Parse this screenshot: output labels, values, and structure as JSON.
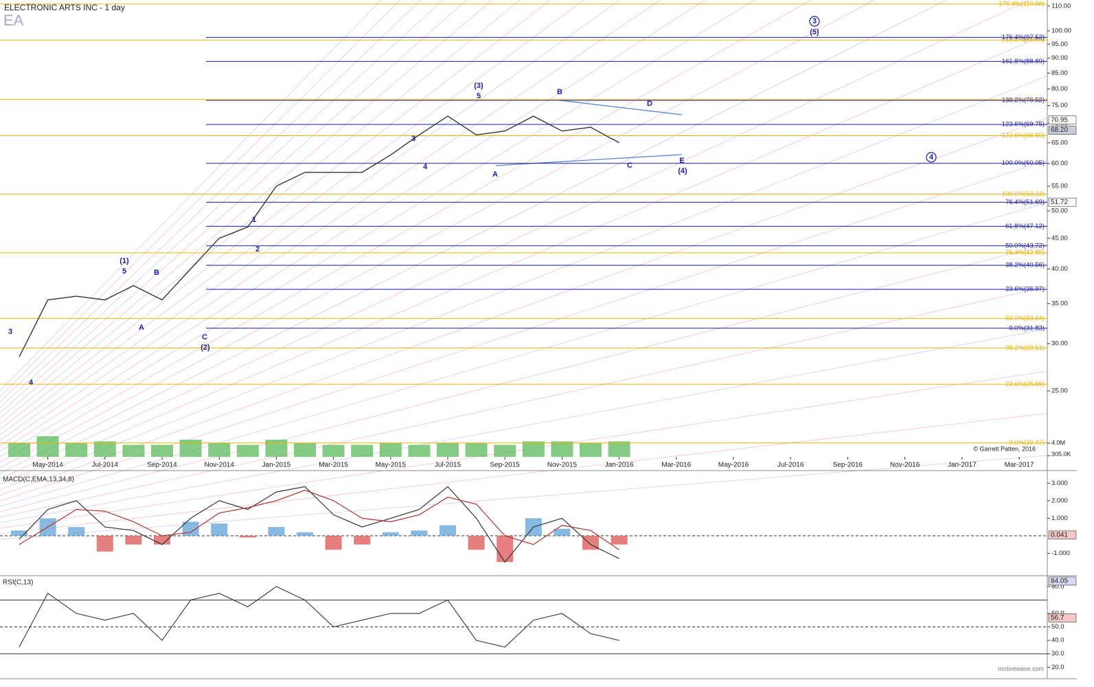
{
  "chart_data": [
    {
      "type": "line",
      "title": "ELECTRONIC ARTS INC - 1 day",
      "subtitle": "EA",
      "categories": [
        null,
        "May-2014",
        null,
        "Jul-2014",
        null,
        "Sep-2014",
        null,
        "Nov-2014",
        null,
        "Jan-2015",
        null,
        "Mar-2015",
        null,
        "May-2015",
        null,
        "Jul-2015",
        null,
        "Sep-2015",
        null,
        "Nov-2015",
        null,
        "Jan-2016",
        null,
        "Mar-2016",
        null,
        "May-2016",
        null,
        "Jul-2016",
        null,
        "Sep-2016",
        null,
        "Nov-2016",
        null,
        "Jan-2017",
        null,
        "Mar-2017"
      ],
      "series": [
        {
          "color": "#333333",
          "values": [
            28.5,
            35.5,
            36,
            35.5,
            37.5,
            35.5,
            40,
            45,
            47,
            55,
            58,
            58,
            58,
            62,
            67,
            72,
            67,
            68,
            72,
            68,
            69,
            65,
            null,
            null,
            null,
            null,
            null,
            null,
            null,
            null,
            null,
            null,
            null,
            null,
            null,
            null
          ]
        }
      ],
      "ylim": [
        19.4,
        112.6
      ],
      "log_scale": true,
      "yticks": [
        {
          "value": 110,
          "label": "110.00"
        },
        {
          "value": 100,
          "label": "100.00"
        },
        {
          "value": 95,
          "label": "95.00"
        },
        {
          "value": 90,
          "label": "90.00"
        },
        {
          "value": 85,
          "label": "85.00"
        },
        {
          "value": 80,
          "label": "80.00"
        },
        {
          "value": 75,
          "label": "75.00"
        },
        {
          "value": 70,
          "label": "70.00"
        },
        {
          "value": 65,
          "label": "65.00"
        },
        {
          "value": 60,
          "label": "60.00"
        },
        {
          "value": 55,
          "label": "55.00"
        },
        {
          "value": 50,
          "label": "50.00"
        },
        {
          "value": 45,
          "label": "45.00"
        },
        {
          "value": 40,
          "label": "40.00"
        },
        {
          "value": 35,
          "label": "35.00"
        },
        {
          "value": 30,
          "label": "30.00"
        },
        {
          "value": 25,
          "label": "25.00"
        }
      ],
      "levels": [
        {
          "value": 110.88,
          "label": "176.4%(110.88)",
          "color": "#e8b400",
          "full": true
        },
        {
          "value": 96.53,
          "label": "161.8%(96.53)",
          "color": "#e8b400",
          "full": true
        },
        {
          "value": 97.52,
          "label": "176.4%(97.52)",
          "color": "#1a1aa8",
          "full": false
        },
        {
          "value": 88.89,
          "label": "161.8%(88.89)",
          "color": "#1a1aa8",
          "full": false
        },
        {
          "value": 76.52,
          "label": "138.2%(76.52)",
          "color": "#1a1aa8",
          "full": false
        },
        {
          "value": 76.81,
          "label": null,
          "color": "#e8b400",
          "full": true
        },
        {
          "value": 69.75,
          "label": "123.6%(69.75)",
          "color": "#1a1aa8",
          "full": false
        },
        {
          "value": 66.8,
          "label": "123.6%(66.80)",
          "color": "#e8b400",
          "full": true
        },
        {
          "value": 60.05,
          "label": "100.0%(60.05)",
          "color": "#1a1aa8",
          "full": false
        },
        {
          "value": 53.34,
          "label": "100.0%(53.34)",
          "color": "#e8b400",
          "full": true
        },
        {
          "value": 51.69,
          "label": "76.4%(51.69)",
          "color": "#1a1aa8",
          "full": false
        },
        {
          "value": 47.12,
          "label": "61.8%(47.12)",
          "color": "#1a1aa8",
          "full": false
        },
        {
          "value": 43.72,
          "label": "50.0%(43.72)",
          "color": "#1a1aa8",
          "full": false
        },
        {
          "value": 42.55,
          "label": "76.4%(42.55)",
          "color": "#e8b400",
          "full": true
        },
        {
          "value": 40.56,
          "label": "38.2%(40.56)",
          "color": "#1a1aa8",
          "full": false
        },
        {
          "value": 36.97,
          "label": "23.6%(36.97)",
          "color": "#1a1aa8",
          "full": false
        },
        {
          "value": 33.04,
          "label": "50.0%(33.04)",
          "color": "#e8b400",
          "full": true
        },
        {
          "value": 31.83,
          "label": "0.0%(31.83)",
          "color": "#1a1aa8",
          "full": false
        },
        {
          "value": 29.51,
          "label": "38.2%(29.51)",
          "color": "#e8b400",
          "full": true
        },
        {
          "value": 25.66,
          "label": "23.6%(25.66)",
          "color": "#e8b400",
          "full": true
        },
        {
          "value": 20.47,
          "label": "0.0%(20.47)",
          "color": "#e8b400",
          "full": true
        }
      ],
      "price_labels": [
        {
          "value": 70.95,
          "label": "70.95"
        },
        {
          "value": 68.2,
          "label": "68.20"
        },
        {
          "value": 51.72,
          "label": "51.72"
        }
      ],
      "annotations": [
        "3",
        "4",
        "(1)",
        "5",
        "A",
        "B",
        "C",
        "(2)",
        "1",
        "2",
        "3",
        "4",
        "(3)",
        "5",
        "A",
        "B",
        "D",
        "C",
        "E",
        "(4)",
        "3",
        "(5)",
        "4"
      ],
      "volume": {
        "color": "#5cb85c",
        "values": [
          4000000,
          6000000,
          4000000,
          4500000,
          3500000,
          3500000,
          5000000,
          4000000,
          3500000,
          5000000,
          4000000,
          3500000,
          3500000,
          4000000,
          3500000,
          4000000,
          4000000,
          3500000,
          4500000,
          4500000,
          4000000,
          4500000,
          null,
          null,
          null,
          null,
          null,
          null,
          null,
          null,
          null,
          null,
          null,
          null,
          null,
          null
        ],
        "ylim": [
          0,
          24000000
        ],
        "yticks": [
          {
            "value": 305000,
            "label": "305.0K"
          },
          {
            "value": 4000000,
            "label": "4.0M"
          }
        ]
      },
      "credit": "© Garrett Patten, 2016"
    },
    {
      "type": "macd",
      "title": "MACD(C,EMA,13,34,8)",
      "series": [
        {
          "color": "#333333",
          "values": [
            -0.2,
            1.5,
            2.0,
            0.5,
            0.3,
            -0.5,
            1.0,
            2.0,
            1.5,
            2.5,
            2.8,
            1.2,
            0.5,
            1.0,
            1.5,
            2.8,
            1.0,
            -1.5,
            0.5,
            1.0,
            -0.5,
            -1.3,
            null,
            null,
            null,
            null,
            null,
            null,
            null,
            null,
            null,
            null,
            null,
            null,
            null,
            null
          ]
        },
        {
          "color": "#b03030",
          "values": [
            -0.5,
            0.5,
            1.5,
            1.4,
            0.8,
            0.0,
            0.2,
            1.3,
            1.6,
            2.0,
            2.6,
            2.0,
            1.0,
            0.8,
            1.2,
            2.2,
            1.8,
            0.0,
            -0.5,
            0.6,
            0.3,
            -0.8,
            null,
            null,
            null,
            null,
            null,
            null,
            null,
            null,
            null,
            null,
            null,
            null,
            null,
            null
          ]
        }
      ],
      "histogram": {
        "pos_color": "#6aa8d8",
        "neg_color": "#e06060",
        "values": [
          0.3,
          1.0,
          0.5,
          -0.9,
          -0.5,
          -0.5,
          0.8,
          0.7,
          -0.1,
          0.5,
          0.2,
          -0.8,
          -0.5,
          0.2,
          0.3,
          0.6,
          -0.8,
          -1.5,
          1.0,
          0.4,
          -0.8,
          -0.5,
          null,
          null,
          null,
          null,
          null,
          null,
          null,
          null,
          null,
          null,
          null,
          null,
          null,
          null
        ]
      },
      "ylim": [
        -2.16,
        3.6
      ],
      "yticks": [
        {
          "value": 3,
          "label": "3.000"
        },
        {
          "value": 2,
          "label": "2.000"
        },
        {
          "value": 1,
          "label": "1.000"
        },
        {
          "value": -1,
          "label": "-1.000"
        }
      ],
      "current": [
        {
          "value": 0.041,
          "label": "0.041",
          "fill": "#f4c7c7"
        }
      ]
    },
    {
      "type": "rsi",
      "title": "RSI(C,13)",
      "series": [
        {
          "color": "#333333",
          "values": [
            35,
            75,
            60,
            55,
            60,
            40,
            70,
            75,
            65,
            80,
            70,
            50,
            55,
            60,
            60,
            70,
            40,
            35,
            55,
            60,
            45,
            40,
            null,
            null,
            null,
            null,
            null,
            null,
            null,
            null,
            null,
            null,
            null,
            null,
            null,
            null
          ]
        }
      ],
      "ylim": [
        13,
        85.5
      ],
      "yticks": [
        {
          "value": 80,
          "label": "80.0"
        },
        {
          "value": 60,
          "label": "60.0"
        },
        {
          "value": 50,
          "label": "50.0"
        },
        {
          "value": 40,
          "label": "40.0"
        },
        {
          "value": 30,
          "label": "30.0"
        },
        {
          "value": 20,
          "label": "20.0"
        }
      ],
      "ref_lines": [
        70,
        50,
        30
      ],
      "current": [
        {
          "value": 84.05,
          "label": "84.05",
          "fill": "#d8d8f0"
        },
        {
          "value": 56.7,
          "label": "56.7",
          "fill": "#f4c7c7"
        }
      ]
    }
  ],
  "footer": "motivewave.com"
}
